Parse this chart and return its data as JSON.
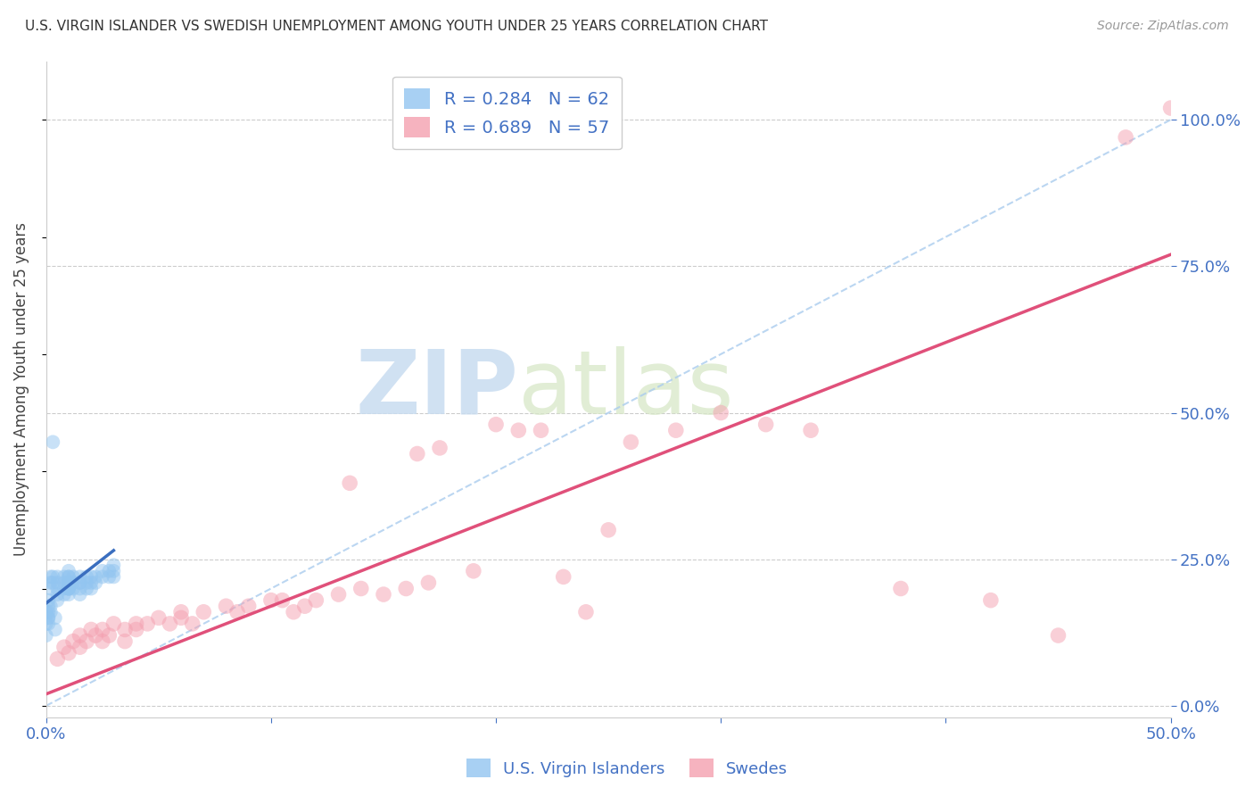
{
  "title": "U.S. VIRGIN ISLANDER VS SWEDISH UNEMPLOYMENT AMONG YOUTH UNDER 25 YEARS CORRELATION CHART",
  "source": "Source: ZipAtlas.com",
  "ylabel": "Unemployment Among Youth under 25 years",
  "xlim": [
    0.0,
    0.5
  ],
  "ylim": [
    -0.02,
    1.1
  ],
  "xticks": [
    0.0,
    0.1,
    0.2,
    0.3,
    0.4,
    0.5
  ],
  "yticks_right": [
    0.0,
    0.25,
    0.5,
    0.75,
    1.0
  ],
  "yticks_right_labels": [
    "0.0%",
    "25.0%",
    "50.0%",
    "75.0%",
    "100.0%"
  ],
  "xtick_labels": [
    "0.0%",
    "",
    "",
    "",
    "",
    "50.0%"
  ],
  "legend1_label": "R = 0.284   N = 62",
  "legend2_label": "R = 0.689   N = 57",
  "legend_bottom1": "U.S. Virgin Islanders",
  "legend_bottom2": "Swedes",
  "blue_color": "#92C5F0",
  "pink_color": "#F4A0B0",
  "blue_line_color": "#3A6EBF",
  "pink_line_color": "#E0507A",
  "ref_line_color": "#AACCEE",
  "watermark_zip": "ZIP",
  "watermark_atlas": "atlas",
  "blue_scatter_x": [
    0.005,
    0.005,
    0.005,
    0.005,
    0.005,
    0.008,
    0.008,
    0.008,
    0.008,
    0.01,
    0.01,
    0.01,
    0.01,
    0.01,
    0.01,
    0.01,
    0.01,
    0.01,
    0.01,
    0.01,
    0.012,
    0.012,
    0.012,
    0.015,
    0.015,
    0.015,
    0.015,
    0.015,
    0.018,
    0.018,
    0.018,
    0.02,
    0.02,
    0.02,
    0.022,
    0.022,
    0.025,
    0.025,
    0.028,
    0.028,
    0.03,
    0.03,
    0.03,
    0.002,
    0.002,
    0.002,
    0.003,
    0.003,
    0.0,
    0.0,
    0.0,
    0.001,
    0.001,
    0.001,
    0.001,
    0.001,
    0.001,
    0.002,
    0.002,
    0.003,
    0.004,
    0.004
  ],
  "blue_scatter_y": [
    0.2,
    0.22,
    0.18,
    0.21,
    0.19,
    0.22,
    0.2,
    0.21,
    0.19,
    0.23,
    0.21,
    0.2,
    0.22,
    0.2,
    0.19,
    0.21,
    0.2,
    0.22,
    0.21,
    0.2,
    0.22,
    0.21,
    0.2,
    0.22,
    0.21,
    0.2,
    0.19,
    0.21,
    0.21,
    0.2,
    0.22,
    0.21,
    0.22,
    0.2,
    0.21,
    0.22,
    0.23,
    0.22,
    0.23,
    0.22,
    0.24,
    0.23,
    0.22,
    0.21,
    0.22,
    0.2,
    0.21,
    0.22,
    0.14,
    0.16,
    0.12,
    0.17,
    0.15,
    0.18,
    0.16,
    0.14,
    0.15,
    0.17,
    0.16,
    0.45,
    0.15,
    0.13
  ],
  "pink_scatter_x": [
    0.005,
    0.008,
    0.01,
    0.012,
    0.015,
    0.015,
    0.018,
    0.02,
    0.022,
    0.025,
    0.025,
    0.028,
    0.03,
    0.035,
    0.035,
    0.04,
    0.04,
    0.045,
    0.05,
    0.055,
    0.06,
    0.06,
    0.065,
    0.07,
    0.08,
    0.085,
    0.09,
    0.1,
    0.105,
    0.11,
    0.115,
    0.12,
    0.13,
    0.135,
    0.14,
    0.15,
    0.16,
    0.165,
    0.17,
    0.175,
    0.19,
    0.2,
    0.21,
    0.22,
    0.23,
    0.24,
    0.25,
    0.26,
    0.28,
    0.3,
    0.32,
    0.34,
    0.38,
    0.42,
    0.45,
    0.48,
    0.5
  ],
  "pink_scatter_y": [
    0.08,
    0.1,
    0.09,
    0.11,
    0.1,
    0.12,
    0.11,
    0.13,
    0.12,
    0.11,
    0.13,
    0.12,
    0.14,
    0.13,
    0.11,
    0.14,
    0.13,
    0.14,
    0.15,
    0.14,
    0.16,
    0.15,
    0.14,
    0.16,
    0.17,
    0.16,
    0.17,
    0.18,
    0.18,
    0.16,
    0.17,
    0.18,
    0.19,
    0.38,
    0.2,
    0.19,
    0.2,
    0.43,
    0.21,
    0.44,
    0.23,
    0.48,
    0.47,
    0.47,
    0.22,
    0.16,
    0.3,
    0.45,
    0.47,
    0.5,
    0.48,
    0.47,
    0.2,
    0.18,
    0.12,
    0.97,
    1.02
  ],
  "blue_trend_x": [
    0.0,
    0.03
  ],
  "blue_trend_y": [
    0.175,
    0.265
  ],
  "pink_trend_x": [
    0.0,
    0.5
  ],
  "pink_trend_y": [
    0.02,
    0.77
  ],
  "ref_line_x": [
    0.0,
    0.5
  ],
  "ref_line_y": [
    0.0,
    1.0
  ],
  "grid_color": "#CCCCCC",
  "background_color": "#FFFFFF"
}
